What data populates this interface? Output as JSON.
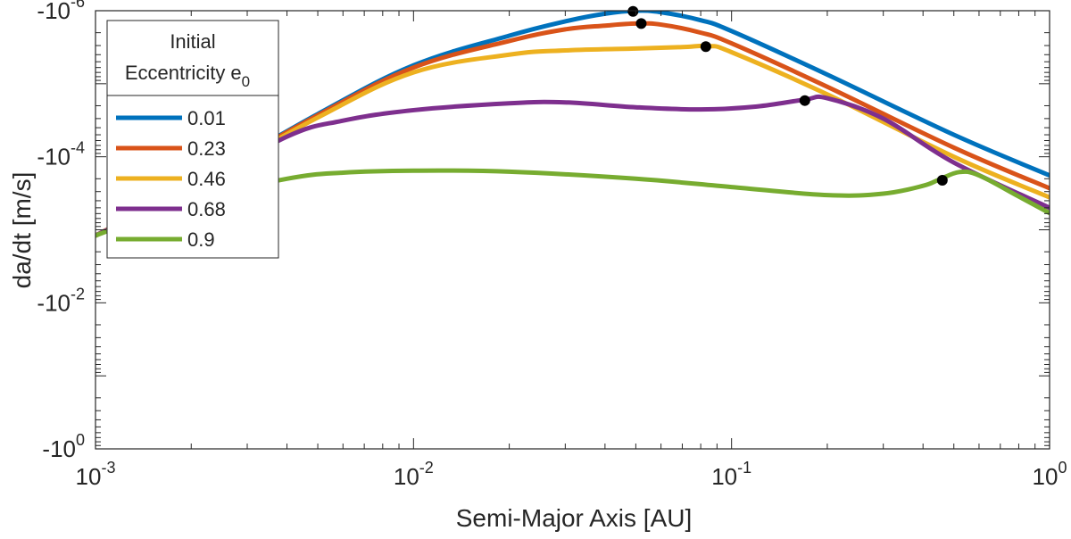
{
  "chart_data": {
    "type": "line",
    "title": "",
    "xlabel": "Semi-Major Axis [AU]",
    "ylabel": "da/dt [m/s]",
    "x_scale": "log",
    "y_scale": "log",
    "xlim": [
      0.001,
      1
    ],
    "ylim": [
      -1e-06,
      -1
    ],
    "x_ticks": [
      {
        "value": 0.001,
        "base": "10",
        "exp": "-3"
      },
      {
        "value": 0.01,
        "base": "10",
        "exp": "-2"
      },
      {
        "value": 0.1,
        "base": "10",
        "exp": "-1"
      },
      {
        "value": 1,
        "base": "10",
        "exp": "0"
      }
    ],
    "y_ticks": [
      {
        "value": -1e-06,
        "base": "-10",
        "exp": "-6"
      },
      {
        "value": -0.0001,
        "base": "-10",
        "exp": "-4"
      },
      {
        "value": -0.01,
        "base": "-10",
        "exp": "-2"
      },
      {
        "value": -1,
        "base": "-10",
        "exp": "0"
      }
    ],
    "grid": false,
    "legend": {
      "title_line1": "Initial",
      "title_line2": "Eccentricity e",
      "title_subscript": "0",
      "position": "top-left"
    },
    "series": [
      {
        "name": "0.01",
        "color": "#0072BD",
        "points": [
          [
            0.001,
            -0.0012
          ],
          [
            0.002,
            -0.00025
          ],
          [
            0.005,
            -2.6e-05
          ],
          [
            0.01,
            -5.6e-06
          ],
          [
            0.02,
            -2.2e-06
          ],
          [
            0.03,
            -1.4e-06
          ],
          [
            0.04,
            -1.1e-06
          ],
          [
            0.05,
            -1e-06
          ],
          [
            0.06,
            -1.05e-06
          ],
          [
            0.08,
            -1.35e-06
          ],
          [
            0.1,
            -1.9e-06
          ],
          [
            0.2,
            -7.5e-06
          ],
          [
            0.5,
            -5e-05
          ],
          [
            1,
            -0.00018
          ]
        ],
        "marker": [
          0.049,
          -1.02e-06
        ]
      },
      {
        "name": "0.23",
        "color": "#D95319",
        "points": [
          [
            0.001,
            -0.0012
          ],
          [
            0.002,
            -0.00025
          ],
          [
            0.005,
            -2.7e-05
          ],
          [
            0.01,
            -6e-06
          ],
          [
            0.02,
            -2.6e-06
          ],
          [
            0.03,
            -1.8e-06
          ],
          [
            0.04,
            -1.6e-06
          ],
          [
            0.05,
            -1.5e-06
          ],
          [
            0.06,
            -1.55e-06
          ],
          [
            0.08,
            -2e-06
          ],
          [
            0.1,
            -2.8e-06
          ],
          [
            0.2,
            -1.1e-05
          ],
          [
            0.5,
            -7.5e-05
          ],
          [
            1,
            -0.00027
          ]
        ],
        "marker": [
          0.052,
          -1.5e-06
        ]
      },
      {
        "name": "0.46",
        "color": "#EDB120",
        "points": [
          [
            0.001,
            -0.0012
          ],
          [
            0.002,
            -0.00026
          ],
          [
            0.005,
            -2.9e-05
          ],
          [
            0.01,
            -7e-06
          ],
          [
            0.02,
            -4e-06
          ],
          [
            0.03,
            -3.5e-06
          ],
          [
            0.05,
            -3.3e-06
          ],
          [
            0.07,
            -3.15e-06
          ],
          [
            0.085,
            -3.05e-06
          ],
          [
            0.1,
            -3.7e-06
          ],
          [
            0.2,
            -1.4e-05
          ],
          [
            0.5,
            -0.0001
          ],
          [
            1,
            -0.00036
          ]
        ],
        "marker": [
          0.083,
          -3.1e-06
        ]
      },
      {
        "name": "0.68",
        "color": "#7E2F8E",
        "points": [
          [
            0.001,
            -0.0012
          ],
          [
            0.002,
            -0.00028
          ],
          [
            0.004,
            -5.3e-05
          ],
          [
            0.006,
            -3.2e-05
          ],
          [
            0.01,
            -2.3e-05
          ],
          [
            0.02,
            -1.85e-05
          ],
          [
            0.03,
            -1.8e-05
          ],
          [
            0.05,
            -2.1e-05
          ],
          [
            0.08,
            -2.25e-05
          ],
          [
            0.12,
            -2.05e-05
          ],
          [
            0.17,
            -1.65e-05
          ],
          [
            0.2,
            -1.58e-05
          ],
          [
            0.3,
            -3e-05
          ],
          [
            0.5,
            -0.00012
          ],
          [
            1,
            -0.0005
          ]
        ],
        "marker": [
          0.17,
          -1.7e-05
        ]
      },
      {
        "name": "0.9",
        "color": "#77AC30",
        "points": [
          [
            0.001,
            -0.0012
          ],
          [
            0.002,
            -0.0004
          ],
          [
            0.004,
            -0.0002
          ],
          [
            0.006,
            -0.000165
          ],
          [
            0.01,
            -0.000155
          ],
          [
            0.02,
            -0.00016
          ],
          [
            0.05,
            -0.0002
          ],
          [
            0.1,
            -0.00026
          ],
          [
            0.2,
            -0.000335
          ],
          [
            0.3,
            -0.00032
          ],
          [
            0.4,
            -0.00025
          ],
          [
            0.45,
            -0.000205
          ],
          [
            0.52,
            -0.000162
          ],
          [
            0.6,
            -0.00018
          ],
          [
            0.8,
            -0.00035
          ],
          [
            1,
            -0.00059
          ]
        ],
        "marker": [
          0.46,
          -0.00021
        ]
      }
    ]
  }
}
